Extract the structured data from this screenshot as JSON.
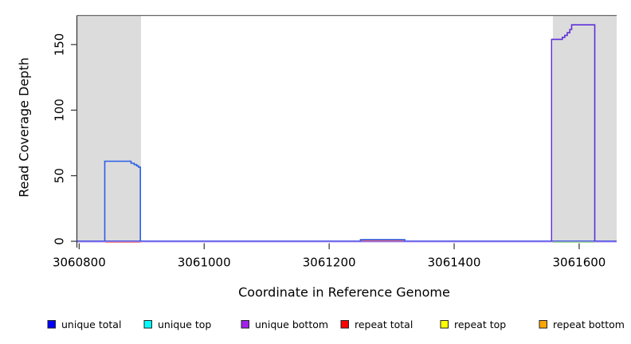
{
  "chart_data": {
    "type": "line",
    "title": "",
    "xlabel": "Coordinate in Reference Genome",
    "ylabel": "Read Coverage Depth",
    "xlim": [
      3060797,
      3061660
    ],
    "ylim": [
      0,
      171.6
    ],
    "x_ticks": [
      3060800,
      3061000,
      3061200,
      3061400,
      3061600
    ],
    "y_ticks": [
      0,
      50,
      100,
      150
    ],
    "grid": false,
    "legend_position": "bottom",
    "shaded_regions": [
      {
        "name": "left-gray-band",
        "x0": 3060797,
        "x1": 3060899,
        "color": "#dcdcdc"
      },
      {
        "name": "right-gray-band",
        "x0": 3061558,
        "x1": 3061660,
        "color": "#dcdcdc"
      }
    ],
    "series": [
      {
        "name": "baseline-unique-total-at-0",
        "color": "#4455e6",
        "width": 1.1,
        "dy": -0.5,
        "points": [
          [
            3060797,
            0
          ],
          [
            3061660,
            0
          ]
        ]
      },
      {
        "name": "baseline-unique-bottom-at-0",
        "color": "#8a63f0",
        "width": 1.1,
        "dy": 0.7,
        "points": [
          [
            3060797,
            0
          ],
          [
            3061660,
            0
          ]
        ]
      },
      {
        "name": "repeat-total-under-left-peak",
        "color": "#f47c7c",
        "width": 1.2,
        "dy": 1.3,
        "points": [
          [
            3060842,
            0
          ],
          [
            3060898,
            0
          ]
        ]
      },
      {
        "name": "repeat-total-under-middle-bump",
        "color": "#ef6666",
        "width": 1.2,
        "dy": -0.9,
        "points": [
          [
            3061252,
            0
          ],
          [
            3061319,
            0
          ]
        ]
      },
      {
        "name": "unique-top-under-right-peak",
        "color": "#86d586",
        "width": 1.2,
        "dy": 1.1,
        "points": [
          [
            3061558,
            0
          ],
          [
            3061624,
            0
          ]
        ]
      },
      {
        "name": "unique-total-left-peak",
        "color": "#2b5fe8",
        "width": 1.6,
        "dy": 0,
        "points": [
          [
            3060841,
            0
          ],
          [
            3060841,
            61
          ],
          [
            3060883,
            61
          ],
          [
            3060883,
            59.5
          ],
          [
            3060888,
            59.5
          ],
          [
            3060888,
            58.5
          ],
          [
            3060892,
            58.5
          ],
          [
            3060892,
            57.5
          ],
          [
            3060895,
            57.5
          ],
          [
            3060895,
            56.5
          ],
          [
            3060898,
            56.5
          ],
          [
            3060898,
            0
          ]
        ]
      },
      {
        "name": "unique-total-middle-bump",
        "color": "#2b5fe8",
        "width": 1.5,
        "dy": 0,
        "points": [
          [
            3061250,
            0
          ],
          [
            3061250,
            1.3
          ],
          [
            3061321,
            1.3
          ],
          [
            3061321,
            0
          ]
        ]
      },
      {
        "name": "unique-bottom-right-peak",
        "color": "#5e2fd8",
        "width": 1.6,
        "dy": 0,
        "points": [
          [
            3061556,
            0
          ],
          [
            3061556,
            154
          ],
          [
            3061573,
            154
          ],
          [
            3061573,
            155.5
          ],
          [
            3061577,
            155.5
          ],
          [
            3061577,
            157
          ],
          [
            3061581,
            157
          ],
          [
            3061581,
            159
          ],
          [
            3061585,
            159
          ],
          [
            3061585,
            161.5
          ],
          [
            3061588,
            161.5
          ],
          [
            3061588,
            165
          ],
          [
            3061625,
            165
          ],
          [
            3061625,
            0
          ]
        ]
      }
    ]
  },
  "legend": {
    "items": [
      {
        "label": "unique total",
        "color": "#0000ff"
      },
      {
        "label": "unique top",
        "color": "#00ffff"
      },
      {
        "label": "unique bottom",
        "color": "#a020f0"
      },
      {
        "label": "repeat total",
        "color": "#ff0000"
      },
      {
        "label": "repeat top",
        "color": "#ffff00"
      },
      {
        "label": "repeat bottom",
        "color": "#ffa500"
      }
    ]
  },
  "axis": {
    "tick_color": "#333333",
    "box_color": "#666666",
    "text_color": "#000000"
  }
}
